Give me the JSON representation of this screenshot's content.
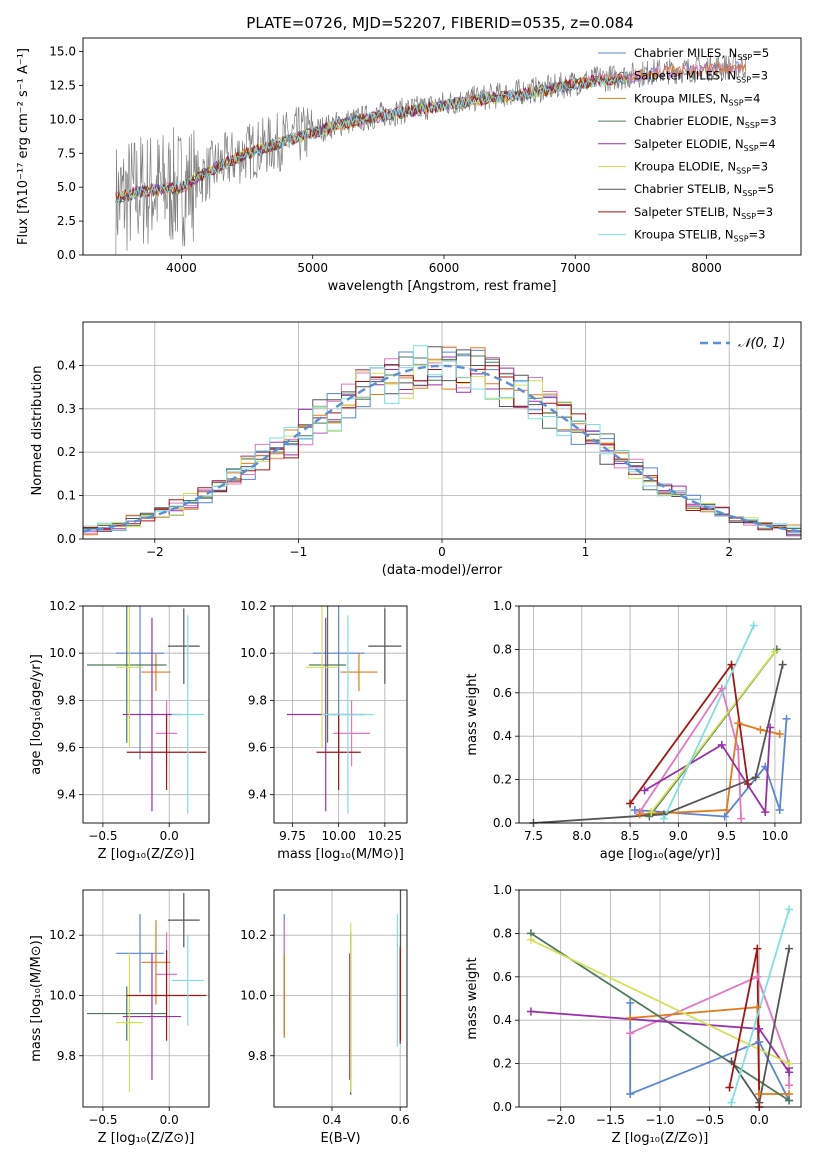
{
  "figure_title": "PLATE=0726, MJD=52207, FIBERID=0535, z=0.084",
  "models": [
    {
      "name": "Chabrier MILES, N",
      "sub": "SSP",
      "suffix": "=5",
      "color": "#5b84d6"
    },
    {
      "name": "Salpeter MILES, N",
      "sub": "SSP",
      "suffix": "=3",
      "color": "#e377c2"
    },
    {
      "name": "Kroupa MILES, N",
      "sub": "SSP",
      "suffix": "=4",
      "color": "#e07b1b"
    },
    {
      "name": "Chabrier ELODIE, N",
      "sub": "SSP",
      "suffix": "=3",
      "color": "#4f7a5a"
    },
    {
      "name": "Salpeter ELODIE, N",
      "sub": "SSP",
      "suffix": "=4",
      "color": "#9932a8"
    },
    {
      "name": "Kroupa ELODIE, N",
      "sub": "SSP",
      "suffix": "=3",
      "color": "#d4e157"
    },
    {
      "name": "Chabrier STELIB, N",
      "sub": "SSP",
      "suffix": "=5",
      "color": "#555555"
    },
    {
      "name": "Salpeter STELIB, N",
      "sub": "SSP",
      "suffix": "=3",
      "color": "#a31515"
    },
    {
      "name": "Kroupa STELIB, N",
      "sub": "SSP",
      "suffix": "=3",
      "color": "#80dfe0"
    }
  ],
  "chart_data": [
    {
      "id": "spectrum",
      "type": "line",
      "xlabel": "wavelength [Angstrom, rest frame]",
      "ylabel": "Flux [fλ10⁻¹⁷ erg cm⁻² s⁻¹ A⁻¹]",
      "xlim": [
        3250,
        8720
      ],
      "ylim": [
        0,
        16
      ],
      "xticks": [
        4000,
        5000,
        6000,
        7000,
        8000
      ],
      "yticks": [
        0.0,
        2.5,
        5.0,
        7.5,
        10.0,
        12.5,
        15.0
      ],
      "ytick_labels": [
        "0.0",
        "2.5",
        "5.0",
        "7.5",
        "10.0",
        "12.5",
        "15.0"
      ],
      "data_series": {
        "name": "data",
        "color": "#808080",
        "x": [
          3500,
          3700,
          3900,
          4000,
          4100,
          4300,
          4500,
          4700,
          4861,
          5000,
          5200,
          5500,
          5800,
          6100,
          6300,
          6563,
          6800,
          7000,
          7200,
          7400,
          7600,
          7800,
          8000,
          8200,
          8300
        ],
        "y": [
          4.0,
          4.8,
          4.9,
          5.0,
          5.5,
          6.7,
          7.6,
          8.2,
          8.7,
          9.1,
          9.7,
          10.3,
          10.8,
          11.3,
          11.6,
          12.0,
          12.3,
          12.7,
          13.0,
          13.2,
          13.5,
          13.6,
          13.8,
          13.9,
          14.0
        ]
      },
      "model_series": {
        "x": [
          3500,
          3700,
          3900,
          4000,
          4100,
          4300,
          4500,
          4700,
          4861,
          5000,
          5200,
          5500,
          5800,
          6100,
          6300,
          6563,
          6800,
          7000,
          7200,
          7400
        ],
        "y": [
          4.2,
          4.7,
          4.9,
          5.0,
          5.6,
          6.6,
          7.5,
          8.1,
          8.6,
          9.0,
          9.6,
          10.2,
          10.7,
          11.2,
          11.5,
          11.8,
          12.2,
          12.6,
          12.9,
          13.1
        ]
      },
      "miles_ext": {
        "x": [
          7400,
          7600,
          7800,
          8000,
          8200,
          8300
        ],
        "y": [
          13.1,
          13.4,
          13.5,
          13.7,
          13.8,
          13.8
        ]
      },
      "legend": "upper-right"
    },
    {
      "id": "residuals",
      "type": "line",
      "xlabel": "(data-model)/error",
      "ylabel": "Normed distribution",
      "xlim": [
        -2.5,
        2.5
      ],
      "ylim": [
        0,
        0.5
      ],
      "xticks": [
        -2,
        -1,
        0,
        1,
        2
      ],
      "xtick_labels": [
        "−2",
        "−1",
        "0",
        "1",
        "2"
      ],
      "yticks": [
        0.0,
        0.1,
        0.2,
        0.3,
        0.4
      ],
      "ytick_labels": [
        "0.0",
        "0.1",
        "0.2",
        "0.3",
        "0.4"
      ],
      "reference": {
        "name": "𝒩(0, 1)",
        "mean": 0,
        "sigma": 1,
        "color": "#5b8fd6"
      },
      "bin_width": 0.1,
      "legend": "upper-right"
    },
    {
      "id": "age_vs_Z",
      "type": "scatter",
      "xlabel": "Z [log₁₀(Z/Z⊙)]",
      "ylabel": "age  [log₁₀(age/yr)]",
      "xlim": [
        -0.65,
        0.3
      ],
      "ylim": [
        9.28,
        10.2
      ],
      "xticks": [
        -0.5,
        0.0
      ],
      "xtick_labels": [
        "−0.5",
        "0.0"
      ],
      "yticks": [
        9.4,
        9.6,
        9.8,
        10.0,
        10.2
      ],
      "ytick_labels": [
        "9.4",
        "9.6",
        "9.8",
        "10.0",
        "10.2"
      ],
      "points": [
        {
          "x": -0.22,
          "y": 10.0,
          "xerr": 0.18,
          "yerr": 0.45
        },
        {
          "x": -0.02,
          "y": 9.66,
          "xerr": 0.08,
          "yerr": 0.14
        },
        {
          "x": -0.1,
          "y": 9.92,
          "xerr": 0.11,
          "yerr": 0.08
        },
        {
          "x": -0.32,
          "y": 9.95,
          "xerr": 0.3,
          "yerr": 0.33
        },
        {
          "x": -0.13,
          "y": 9.74,
          "xerr": 0.22,
          "yerr": 0.41
        },
        {
          "x": -0.3,
          "y": 9.94,
          "xerr": 0.1,
          "yerr": 0.34
        },
        {
          "x": 0.11,
          "y": 10.03,
          "xerr": 0.12,
          "yerr": 0.16
        },
        {
          "x": -0.02,
          "y": 9.58,
          "xerr": 0.3,
          "yerr": 0.16
        },
        {
          "x": 0.14,
          "y": 9.74,
          "xerr": 0.12,
          "yerr": 0.42
        }
      ]
    },
    {
      "id": "age_vs_mass",
      "type": "scatter",
      "xlabel": "mass [log₁₀(M/M⊙)]",
      "ylabel": "",
      "xlim": [
        9.65,
        10.37
      ],
      "ylim": [
        9.28,
        10.2
      ],
      "xticks": [
        9.75,
        10.0,
        10.25
      ],
      "xtick_labels": [
        "9.75",
        "10.00",
        "10.25"
      ],
      "yticks": [
        9.4,
        9.6,
        9.8,
        10.0,
        10.2
      ],
      "ytick_labels": [
        "9.4",
        "9.6",
        "9.8",
        "10.0",
        "10.2"
      ],
      "points": [
        {
          "x": 10.0,
          "y": 10.0,
          "xerr": 0.14,
          "yerr": 0.45
        },
        {
          "x": 10.07,
          "y": 9.66,
          "xerr": 0.1,
          "yerr": 0.14
        },
        {
          "x": 10.11,
          "y": 9.92,
          "xerr": 0.1,
          "yerr": 0.08
        },
        {
          "x": 9.94,
          "y": 9.95,
          "xerr": 0.1,
          "yerr": 0.33
        },
        {
          "x": 9.93,
          "y": 9.74,
          "xerr": 0.21,
          "yerr": 0.41
        },
        {
          "x": 9.91,
          "y": 9.94,
          "xerr": 0.09,
          "yerr": 0.34
        },
        {
          "x": 10.25,
          "y": 10.03,
          "xerr": 0.09,
          "yerr": 0.16
        },
        {
          "x": 10.0,
          "y": 9.58,
          "xerr": 0.12,
          "yerr": 0.16
        },
        {
          "x": 10.05,
          "y": 9.74,
          "xerr": 0.14,
          "yerr": 0.42
        }
      ]
    },
    {
      "id": "weight_vs_age",
      "type": "line",
      "xlabel": "age  [log₁₀(age/yr)]",
      "ylabel": "mass weight",
      "xlim": [
        7.35,
        10.27
      ],
      "ylim": [
        0,
        1
      ],
      "xticks": [
        7.5,
        8.0,
        8.5,
        9.0,
        9.5,
        10.0
      ],
      "xtick_labels": [
        "7.5",
        "8.0",
        "8.5",
        "9.0",
        "9.5",
        "10.0"
      ],
      "yticks": [
        0.0,
        0.2,
        0.4,
        0.6,
        0.8,
        1.0
      ],
      "ytick_labels": [
        "0.0",
        "0.2",
        "0.4",
        "0.6",
        "0.8",
        "1.0"
      ],
      "series": [
        {
          "x": [
            10.12,
            10.05,
            9.9,
            9.48,
            8.55
          ],
          "y": [
            0.48,
            0.06,
            0.26,
            0.03,
            0.06
          ]
        },
        {
          "x": [
            8.6,
            9.45,
            9.62,
            9.65
          ],
          "y": [
            0.05,
            0.62,
            0.34,
            0.02
          ]
        },
        {
          "x": [
            8.6,
            9.5,
            9.62,
            9.85,
            10.05
          ],
          "y": [
            0.04,
            0.06,
            0.46,
            0.43,
            0.41
          ]
        },
        {
          "x": [
            8.7,
            10.02
          ],
          "y": [
            0.03,
            0.8
          ]
        },
        {
          "x": [
            8.65,
            9.45,
            9.9,
            9.95
          ],
          "y": [
            0.15,
            0.36,
            0.05,
            0.44
          ]
        },
        {
          "x": [
            8.72,
            10.0
          ],
          "y": [
            0.05,
            0.79
          ]
        },
        {
          "x": [
            7.5,
            8.85,
            9.8,
            10.08
          ],
          "y": [
            0.0,
            0.04,
            0.21,
            0.73
          ]
        },
        {
          "x": [
            8.5,
            9.55,
            9.72
          ],
          "y": [
            0.09,
            0.73,
            0.18
          ]
        },
        {
          "x": [
            8.85,
            9.78
          ],
          "y": [
            0.02,
            0.91
          ]
        }
      ]
    },
    {
      "id": "mass_vs_Z",
      "type": "scatter",
      "xlabel": "Z [log₁₀(Z/Z⊙)]",
      "ylabel": "mass [log₁₀(M/M⊙)]",
      "xlim": [
        -0.65,
        0.3
      ],
      "ylim": [
        9.63,
        10.35
      ],
      "xticks": [
        -0.5,
        0.0
      ],
      "xtick_labels": [
        "−0.5",
        "0.0"
      ],
      "yticks": [
        9.8,
        10.0,
        10.2
      ],
      "ytick_labels": [
        "9.8",
        "10.0",
        "10.2"
      ],
      "points": [
        {
          "x": -0.22,
          "y": 10.14,
          "xerr": 0.18,
          "yerr": 0.13
        },
        {
          "x": -0.02,
          "y": 10.07,
          "xerr": 0.08,
          "yerr": 0.14
        },
        {
          "x": -0.1,
          "y": 10.11,
          "xerr": 0.11,
          "yerr": 0.14
        },
        {
          "x": -0.32,
          "y": 9.94,
          "xerr": 0.3,
          "yerr": 0.09
        },
        {
          "x": -0.13,
          "y": 9.93,
          "xerr": 0.22,
          "yerr": 0.21
        },
        {
          "x": -0.3,
          "y": 9.91,
          "xerr": 0.1,
          "yerr": 0.23
        },
        {
          "x": 0.11,
          "y": 10.25,
          "xerr": 0.12,
          "yerr": 0.09
        },
        {
          "x": -0.02,
          "y": 10.0,
          "xerr": 0.3,
          "yerr": 0.15
        },
        {
          "x": 0.14,
          "y": 10.05,
          "xerr": 0.12,
          "yerr": 0.15
        }
      ]
    },
    {
      "id": "mass_vs_ebv",
      "type": "scatter",
      "xlabel": "E(B-V)",
      "ylabel": "",
      "xlim": [
        0.23,
        0.62
      ],
      "ylim": [
        9.63,
        10.35
      ],
      "xticks": [
        0.4,
        0.6
      ],
      "xtick_labels": [
        "0.4",
        "0.6"
      ],
      "yticks": [
        9.8,
        10.0,
        10.2
      ],
      "ytick_labels": [
        "9.8",
        "10.0",
        "10.2"
      ],
      "points": [
        {
          "x": 0.26,
          "y": 10.07,
          "yerr": 0.2
        },
        {
          "x": 0.26,
          "y": 10.11,
          "yerr": 0.14
        },
        {
          "x": 0.26,
          "y": 10.0,
          "yerr": 0.14
        },
        {
          "x": 0.455,
          "y": 9.94,
          "yerr": 0.27
        },
        {
          "x": 0.452,
          "y": 9.93,
          "yerr": 0.21
        },
        {
          "x": 0.455,
          "y": 9.96,
          "yerr": 0.28
        },
        {
          "x": 0.601,
          "y": 10.1,
          "yerr": 0.25
        },
        {
          "x": 0.6,
          "y": 10.0,
          "yerr": 0.16
        },
        {
          "x": 0.592,
          "y": 10.05,
          "yerr": 0.22
        }
      ]
    },
    {
      "id": "weight_vs_Z",
      "type": "line",
      "xlabel": "Z [log₁₀(Z/Z⊙)]",
      "ylabel": "mass weight",
      "xlim": [
        -2.42,
        0.42
      ],
      "ylim": [
        0,
        1
      ],
      "xticks": [
        -2.0,
        -1.5,
        -1.0,
        -0.5,
        0.0
      ],
      "xtick_labels": [
        "−2.0",
        "−1.5",
        "−1.0",
        "−0.5",
        "0.0"
      ],
      "yticks": [
        0.0,
        0.2,
        0.4,
        0.6,
        0.8,
        1.0
      ],
      "ytick_labels": [
        "0.0",
        "0.2",
        "0.4",
        "0.6",
        "0.8",
        "1.0"
      ],
      "series": [
        {
          "x": [
            -1.3,
            -1.3,
            0.0,
            0.3
          ],
          "y": [
            0.48,
            0.06,
            0.3,
            0.03
          ]
        },
        {
          "x": [
            -1.3,
            -0.02,
            0.3,
            0.3
          ],
          "y": [
            0.34,
            0.6,
            0.2,
            0.1
          ]
        },
        {
          "x": [
            -1.3,
            -0.02,
            0.0,
            0.3
          ],
          "y": [
            0.41,
            0.46,
            0.06,
            0.06
          ]
        },
        {
          "x": [
            -2.3,
            0.3
          ],
          "y": [
            0.8,
            0.03
          ]
        },
        {
          "x": [
            -2.3,
            0.0,
            0.3,
            0.3
          ],
          "y": [
            0.44,
            0.36,
            0.16,
            0.18
          ]
        },
        {
          "x": [
            -2.3,
            0.3
          ],
          "y": [
            0.77,
            0.2
          ]
        },
        {
          "x": [
            -0.28,
            0.0,
            0.3
          ],
          "y": [
            0.21,
            0.02,
            0.73
          ]
        },
        {
          "x": [
            -0.3,
            -0.02,
            0.0
          ],
          "y": [
            0.09,
            0.73,
            0.0
          ]
        },
        {
          "x": [
            -0.28,
            0.3
          ],
          "y": [
            0.02,
            0.91
          ]
        }
      ]
    }
  ]
}
